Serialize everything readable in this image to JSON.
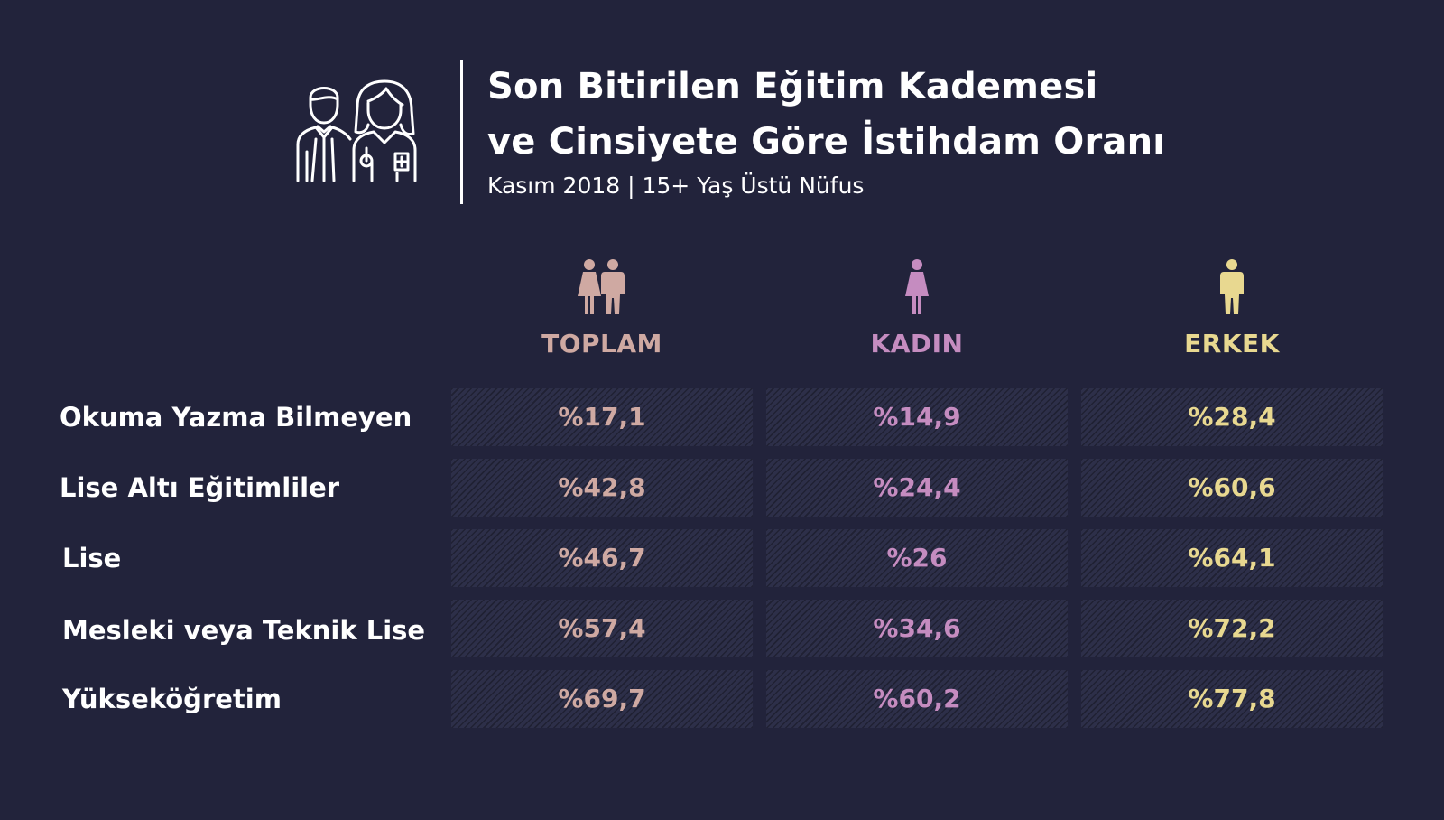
{
  "header": {
    "title_line1": "Son Bitirilen Eğitim Kademesi",
    "title_line2": "ve Cinsiyete Göre İstihdam Oranı",
    "subtitle": "Kasım 2018 | 15+ Yaş Üstü Nüfus",
    "icon": "man-and-woman-outline-icon"
  },
  "colors": {
    "background": "#22233b",
    "toplam": "#cfa9a2",
    "kadin": "#c58cc0",
    "erkek": "#e8d890"
  },
  "chart_data": {
    "type": "table",
    "title": "Son Bitirilen Eğitim Kademesi ve Cinsiyete Göre İstihdam Oranı",
    "subtitle": "Kasım 2018 | 15+ Yaş Üstü Nüfus",
    "columns": [
      {
        "label": "TOPLAM",
        "icon": "couple-icon"
      },
      {
        "label": "KADIN",
        "icon": "woman-icon"
      },
      {
        "label": "ERKEK",
        "icon": "man-icon"
      }
    ],
    "rows": [
      {
        "label": "Okuma Yazma Bilmeyen",
        "cells": [
          "%17,1",
          "%14,9",
          "%28,4"
        ]
      },
      {
        "label": "Lise Altı Eğitimliler",
        "cells": [
          "%42,8",
          "%24,4",
          "%60,6"
        ]
      },
      {
        "label": "Lise",
        "cells": [
          "%46,7",
          "%26",
          "%64,1"
        ]
      },
      {
        "label": "Mesleki veya Teknik Lise",
        "cells": [
          "%57,4",
          "%34,6",
          "%72,2"
        ]
      },
      {
        "label": "Yükseköğretim",
        "cells": [
          "%69,7",
          "%60,2",
          "%77,8"
        ]
      }
    ]
  }
}
